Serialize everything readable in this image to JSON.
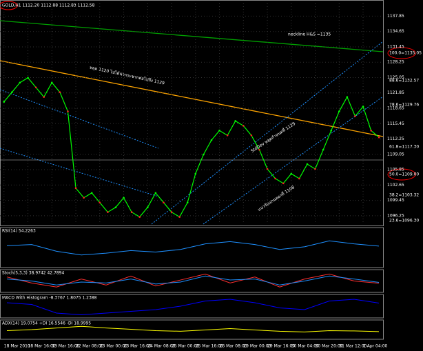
{
  "chart_data": {
    "type": "line",
    "title": "GOLD,H1 1112.20 1112.88 1112.83 1112.58",
    "categories": [
      "18 Mar 2010",
      null,
      null,
      "18 Mar 16:00",
      null,
      null,
      "19 Mar 16:00",
      null,
      null,
      "22 Mar 08:00",
      null,
      null,
      "23 Mar 00:00",
      null,
      null,
      "23 Mar 16:00",
      null,
      null,
      "24 Mar 08:00",
      null,
      null,
      "25 Mar 00:00",
      null,
      null,
      "25 Mar 16:00",
      null,
      null,
      "26 Mar 08:00",
      null,
      null,
      "29 Mar 00:00",
      null,
      null,
      "29 Mar 16:00",
      null,
      null,
      "30 Mar 04:00",
      null,
      null,
      "30 Mar 20:00",
      null,
      null,
      "31 Mar 12:00",
      null,
      null,
      "1 Apr 04:00",
      null,
      null
    ],
    "values": [
      1120,
      1122,
      1124,
      1125,
      1123,
      1121,
      1124,
      1122,
      1118,
      1102,
      1100,
      1101,
      1099,
      1097,
      1098,
      1100,
      1097,
      1096,
      1098,
      1101,
      1099,
      1097,
      1096,
      1099,
      1105,
      1109,
      1112,
      1114,
      1113,
      1116,
      1115,
      1113,
      1110,
      1106,
      1104,
      1103,
      1105,
      1104,
      1107,
      1106,
      1110,
      1114,
      1118,
      1121,
      1117,
      1119,
      1114,
      1112.58
    ],
    "color": "#00ff00",
    "ylim": [
      1094.5,
      1140.5
    ],
    "yticks": [
      1096.25,
      1099.45,
      1102.65,
      1105.85,
      1109.05,
      1112.25,
      1115.45,
      1118.65,
      1121.85,
      1125.05,
      1128.25,
      1131.45,
      1134.65,
      1137.85
    ],
    "grid": true,
    "annotations": [
      "neckline H&S =1135",
      "หลุด 1120 ไปได้น่ากระชากต่อไปถึง 1129",
      "StdDev หลุดกำหนดที่ 1129",
      "แนวรับแกนลอกที่ 1108",
      "100.0=1135.05",
      "88.6=1132.57",
      "78.6=1129.76",
      "61.8=1117.30",
      "50.0=1109.00",
      "38.2=1103.32",
      "23.6=1096.30"
    ],
    "panels": [
      {
        "label": "RSI(14) 54.2263",
        "ylim": [
          0,
          100
        ],
        "series": [
          {
            "color": "#1e90ff",
            "values": [
              55,
              58,
              40,
              30,
              35,
              42,
              38,
              45,
              60,
              66,
              58,
              45,
              52,
              68,
              60,
              54
            ]
          }
        ]
      },
      {
        "label": "Stoch(5,3,3) 38.9742 42.7894",
        "ylim": [
          0,
          100
        ],
        "series": [
          {
            "color": "#ff3030",
            "values": [
              70,
              40,
              20,
              60,
              30,
              75,
              25,
              55,
              85,
              40,
              70,
              20,
              60,
              85,
              50,
              39
            ]
          },
          {
            "color": "#1e90ff",
            "values": [
              60,
              50,
              30,
              45,
              40,
              60,
              35,
              45,
              75,
              55,
              60,
              30,
              50,
              75,
              60,
              43
            ]
          }
        ]
      },
      {
        "label": "MACD With Histogram -8.3767 1.8075 1.2388",
        "ylim": [
          -6,
          6
        ],
        "series": [
          {
            "color": "#0000ff",
            "values": [
              2,
              1,
              -4,
              -5,
              -4,
              -3,
              -2,
              0,
              3,
              4,
              2,
              -1,
              -2,
              3,
              4,
              1.8
            ]
          }
        ]
      },
      {
        "label": "ADX(14) 19.0754 +DI 16.5546 -DI 18.9995",
        "ylim": [
          0,
          50
        ],
        "series": [
          {
            "color": "#ffff00",
            "values": [
              22,
              25,
              30,
              35,
              30,
              26,
              22,
              20,
              24,
              28,
              24,
              20,
              18,
              22,
              21,
              19
            ]
          }
        ]
      }
    ]
  }
}
